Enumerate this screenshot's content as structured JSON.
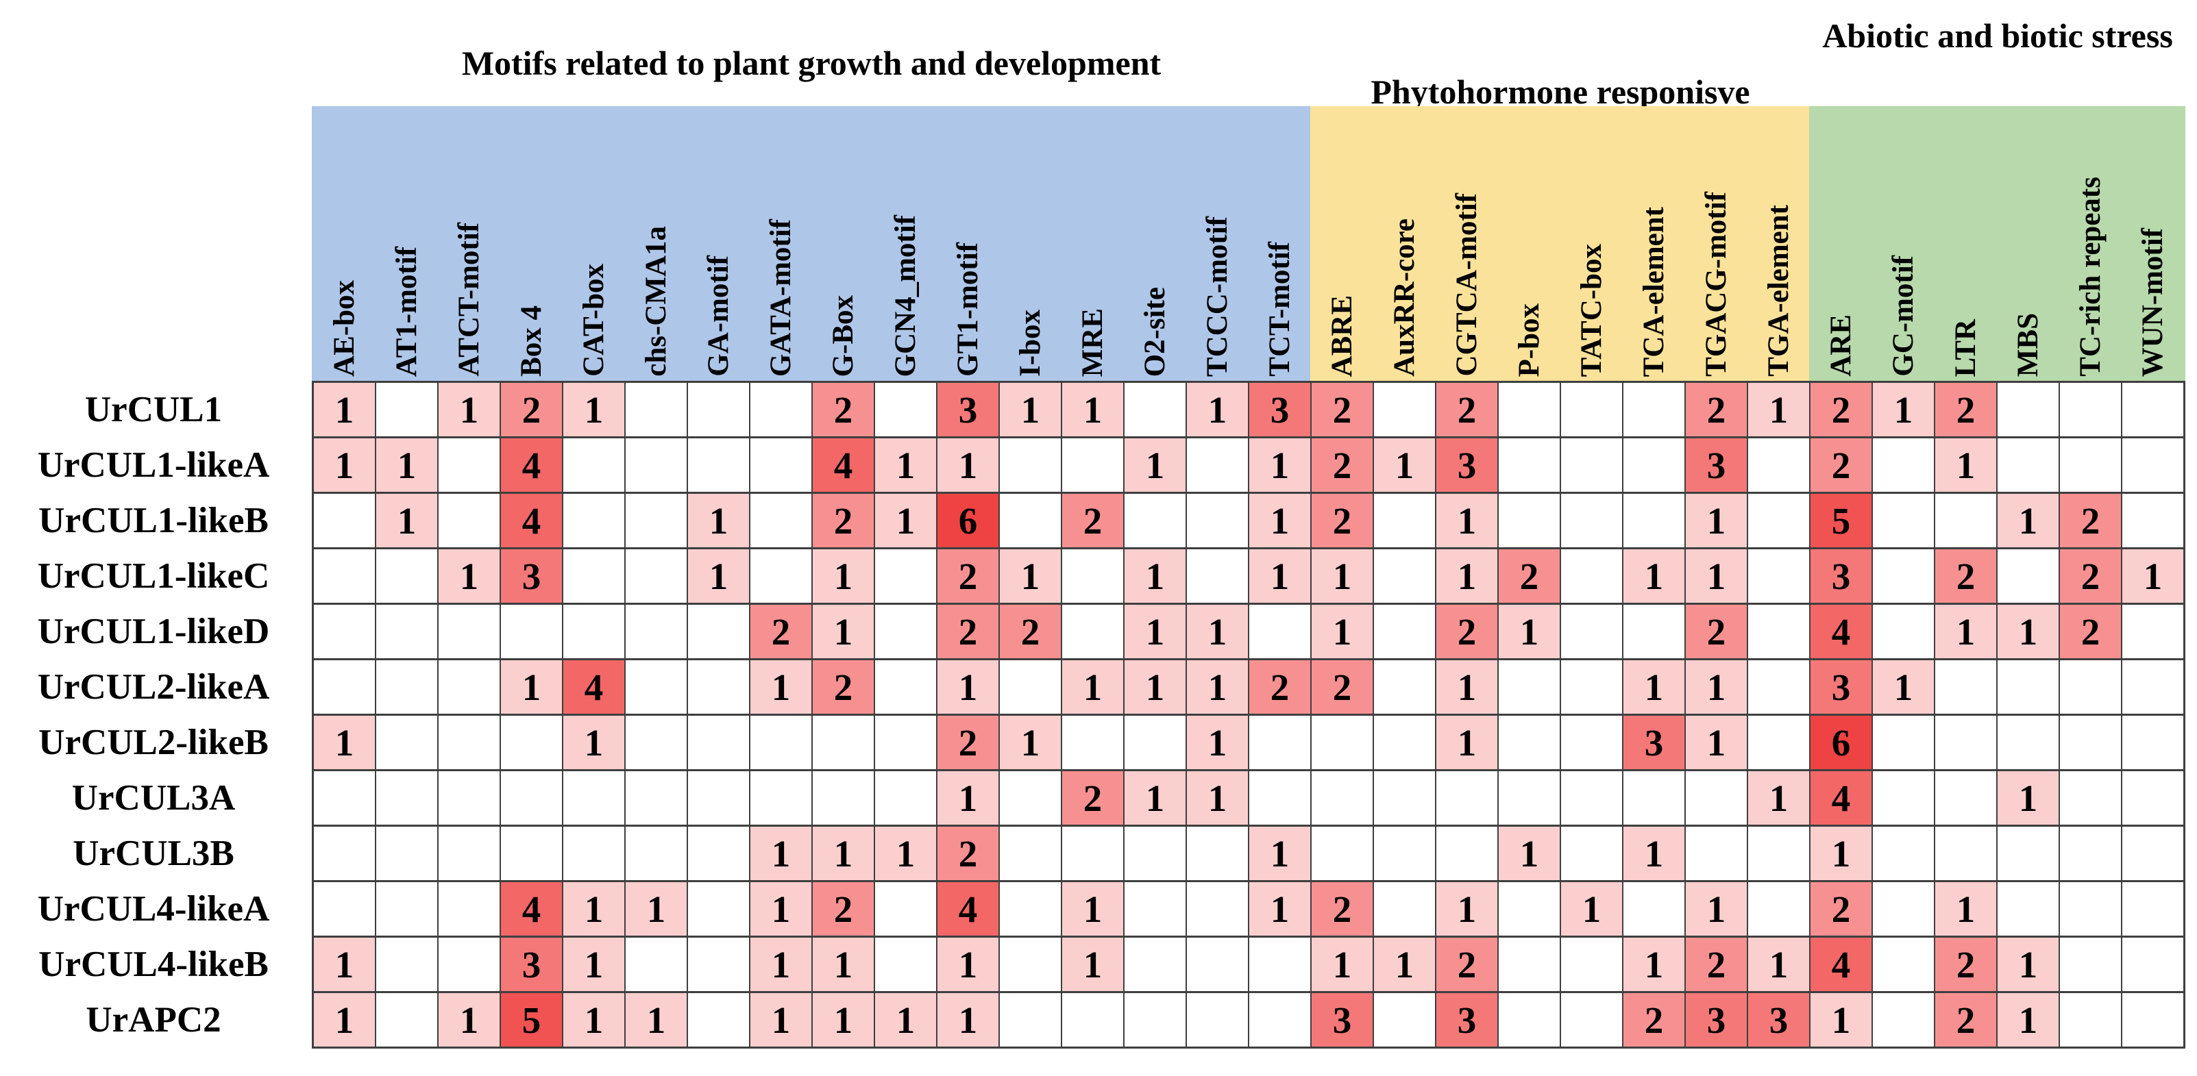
{
  "figure": {
    "kind": "promoter cis-acting element heatmap"
  },
  "chart_data": {
    "type": "heatmap",
    "title": "",
    "legend_position": "none",
    "grid": true,
    "column_groups": [
      {
        "label": "Motifs related to plant growth and development",
        "color": "#aec6e8",
        "start": 0,
        "count": 16
      },
      {
        "label": "Phytohormone responisve",
        "color": "#fbe29a",
        "start": 16,
        "count": 8
      },
      {
        "label": "Abiotic and biotic stress",
        "color": "#b7d9ab",
        "start": 24,
        "count": 6
      }
    ],
    "columns": [
      "AE-box",
      "AT1-motif",
      "ATCT-motif",
      "Box 4",
      "CAT-box",
      "chs-CMA1a",
      "GA-motif",
      "GATA-motif",
      "G-Box",
      "GCN4_motif",
      "GT1-motif",
      "I-box",
      "MRE",
      "O2-site",
      "TCCC-motif",
      "TCT-motif",
      "ABRE",
      "AuxRR-core",
      "CGTCA-motif",
      "P-box",
      "TATC-box",
      "TCA-element",
      "TGACG-motif",
      "TGA-element",
      "ARE",
      "GC-motif",
      "LTR",
      "MBS",
      "TC-rich repeats",
      "WUN-motif"
    ],
    "rows": [
      "UrCUL1",
      "UrCUL1-likeA",
      "UrCUL1-likeB",
      "UrCUL1-likeC",
      "UrCUL1-likeD",
      "UrCUL2-likeA",
      "UrCUL2-likeB",
      "UrCUL3A",
      "UrCUL3B",
      "UrCUL4-likeA",
      "UrCUL4-likeB",
      "UrAPC2"
    ],
    "values": [
      [
        1,
        0,
        1,
        2,
        1,
        0,
        0,
        0,
        2,
        0,
        3,
        1,
        1,
        0,
        1,
        3,
        2,
        0,
        2,
        0,
        0,
        0,
        2,
        1,
        2,
        1,
        2,
        0,
        0,
        0
      ],
      [
        1,
        1,
        0,
        4,
        0,
        0,
        0,
        0,
        4,
        1,
        1,
        0,
        0,
        1,
        0,
        1,
        2,
        1,
        3,
        0,
        0,
        0,
        3,
        0,
        2,
        0,
        1,
        0,
        0,
        0
      ],
      [
        0,
        1,
        0,
        4,
        0,
        0,
        1,
        0,
        2,
        1,
        6,
        0,
        2,
        0,
        0,
        1,
        2,
        0,
        1,
        0,
        0,
        0,
        1,
        0,
        5,
        0,
        0,
        1,
        2,
        0
      ],
      [
        0,
        0,
        1,
        3,
        0,
        0,
        1,
        0,
        1,
        0,
        2,
        1,
        0,
        1,
        0,
        1,
        1,
        0,
        1,
        2,
        0,
        1,
        1,
        0,
        3,
        0,
        2,
        0,
        2,
        1
      ],
      [
        0,
        0,
        0,
        0,
        0,
        0,
        0,
        2,
        1,
        0,
        2,
        2,
        0,
        1,
        1,
        0,
        1,
        0,
        2,
        1,
        0,
        0,
        2,
        0,
        4,
        0,
        1,
        1,
        2,
        0
      ],
      [
        0,
        0,
        0,
        1,
        4,
        0,
        0,
        1,
        2,
        0,
        1,
        0,
        1,
        1,
        1,
        2,
        2,
        0,
        1,
        0,
        0,
        1,
        1,
        0,
        3,
        1,
        0,
        0,
        0,
        0
      ],
      [
        1,
        0,
        0,
        0,
        1,
        0,
        0,
        0,
        0,
        0,
        2,
        1,
        0,
        0,
        1,
        0,
        0,
        0,
        1,
        0,
        0,
        3,
        1,
        0,
        6,
        0,
        0,
        0,
        0,
        0
      ],
      [
        0,
        0,
        0,
        0,
        0,
        0,
        0,
        0,
        0,
        0,
        1,
        0,
        2,
        1,
        1,
        0,
        0,
        0,
        0,
        0,
        0,
        0,
        0,
        1,
        4,
        0,
        0,
        1,
        0,
        0
      ],
      [
        0,
        0,
        0,
        0,
        0,
        0,
        0,
        1,
        1,
        1,
        2,
        0,
        0,
        0,
        0,
        1,
        0,
        0,
        0,
        1,
        0,
        1,
        0,
        0,
        1,
        0,
        0,
        0,
        0,
        0
      ],
      [
        0,
        0,
        0,
        4,
        1,
        1,
        0,
        1,
        2,
        0,
        4,
        0,
        1,
        0,
        0,
        1,
        2,
        0,
        1,
        0,
        1,
        0,
        1,
        0,
        2,
        0,
        1,
        0,
        0,
        0
      ],
      [
        1,
        0,
        0,
        3,
        1,
        0,
        0,
        1,
        1,
        0,
        1,
        0,
        1,
        0,
        0,
        0,
        1,
        1,
        2,
        0,
        0,
        1,
        2,
        1,
        4,
        0,
        2,
        1,
        0,
        0
      ],
      [
        1,
        0,
        1,
        5,
        1,
        1,
        0,
        1,
        1,
        1,
        1,
        0,
        0,
        0,
        0,
        0,
        3,
        0,
        3,
        0,
        0,
        2,
        3,
        3,
        1,
        0,
        2,
        1,
        0,
        0
      ]
    ],
    "value_colors": {
      "0": "#ffffff",
      "1": "#fccfcf",
      "2": "#f79191",
      "3": "#f57878",
      "4": "#f36767",
      "5": "#f15252",
      "6": "#ef4343"
    }
  }
}
